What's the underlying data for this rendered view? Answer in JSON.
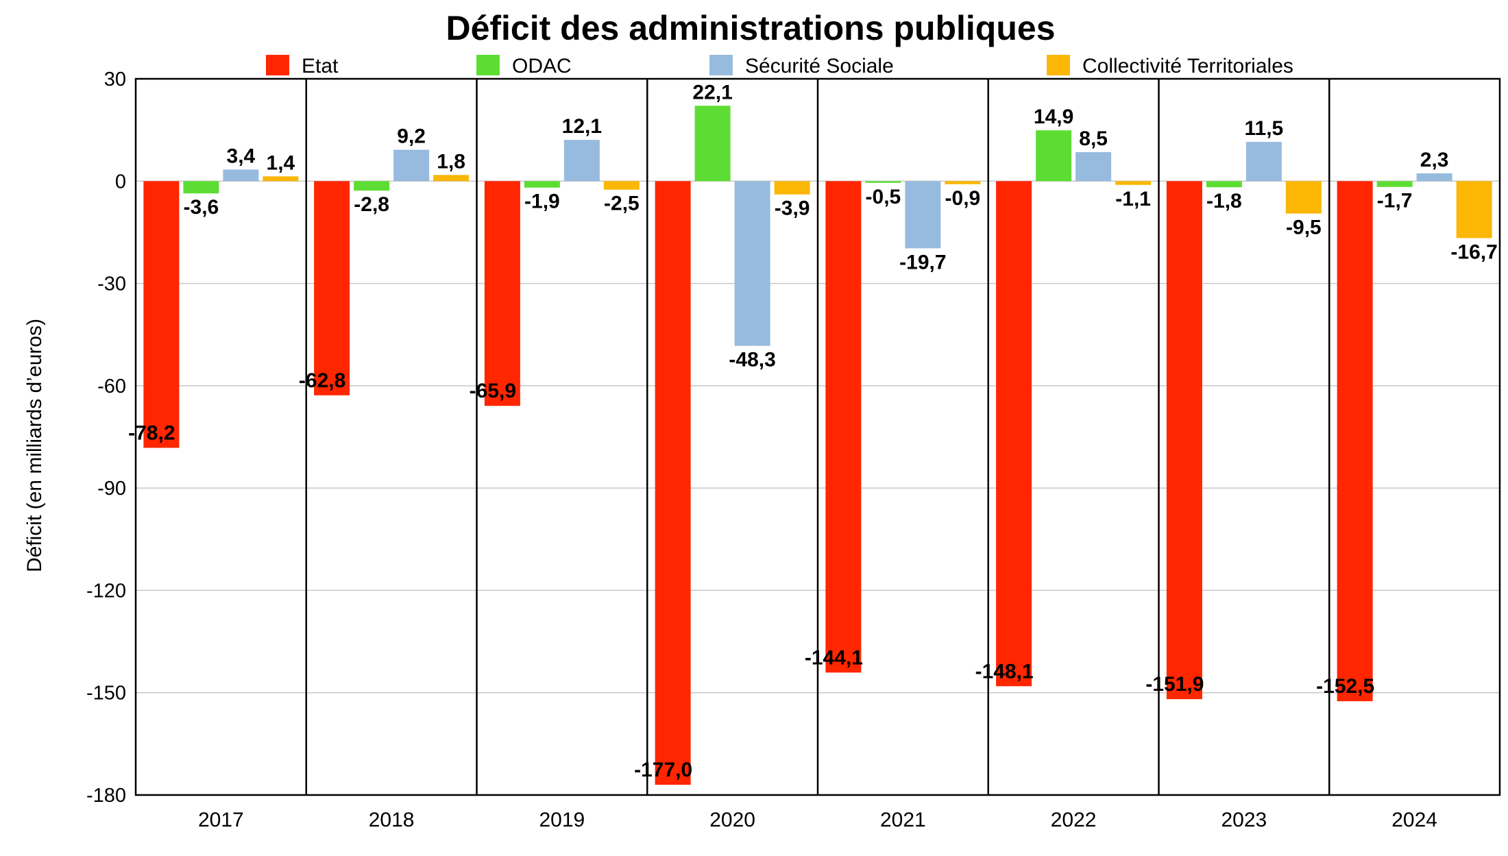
{
  "chart_data": {
    "type": "bar",
    "title": "Déficit des administrations publiques",
    "xlabel": "",
    "ylabel": "Déficit (en milliards d’euros)",
    "ylim": [
      -180,
      30
    ],
    "yticks": [
      30,
      0,
      -30,
      -60,
      -90,
      -120,
      -150,
      -180
    ],
    "grid": true,
    "legend_position": "top",
    "categories": [
      "2017",
      "2018",
      "2019",
      "2020",
      "2021",
      "2022",
      "2023",
      "2024"
    ],
    "series": [
      {
        "name": "Etat",
        "color": "#ff2600",
        "values": [
          -78.2,
          -62.8,
          -65.9,
          -177.0,
          -144.1,
          -148.1,
          -151.9,
          -152.5
        ],
        "labels": [
          "-78,2",
          "-62,8",
          "-65,9",
          "-177,0",
          "-144,1",
          "-148,1",
          "-151,9",
          "-152,5"
        ]
      },
      {
        "name": "ODAC",
        "color": "#5ddd33",
        "values": [
          -3.6,
          -2.8,
          -1.9,
          22.1,
          -0.5,
          14.9,
          -1.8,
          -1.7
        ],
        "labels": [
          "-3,6",
          "-2,8",
          "-1,9",
          "22,1",
          "-0,5",
          "14,9",
          "-1,8",
          "-1,7"
        ]
      },
      {
        "name": "Sécurité Sociale",
        "color": "#97bbde",
        "values": [
          3.4,
          9.2,
          12.1,
          -48.3,
          -19.7,
          8.5,
          11.5,
          2.3
        ],
        "labels": [
          "3,4",
          "9,2",
          "12,1",
          "-48,3",
          "-19,7",
          "8,5",
          "11,5",
          "2,3"
        ]
      },
      {
        "name": "Collectivité Territoriales",
        "color": "#fbb606",
        "values": [
          1.4,
          1.8,
          -2.5,
          -3.9,
          -0.9,
          -1.1,
          -9.5,
          -16.7
        ],
        "labels": [
          "1,4",
          "1,8",
          "-2,5",
          "-3,9",
          "-0,9",
          "-1,1",
          "-9,5",
          "-16,7"
        ]
      }
    ]
  }
}
